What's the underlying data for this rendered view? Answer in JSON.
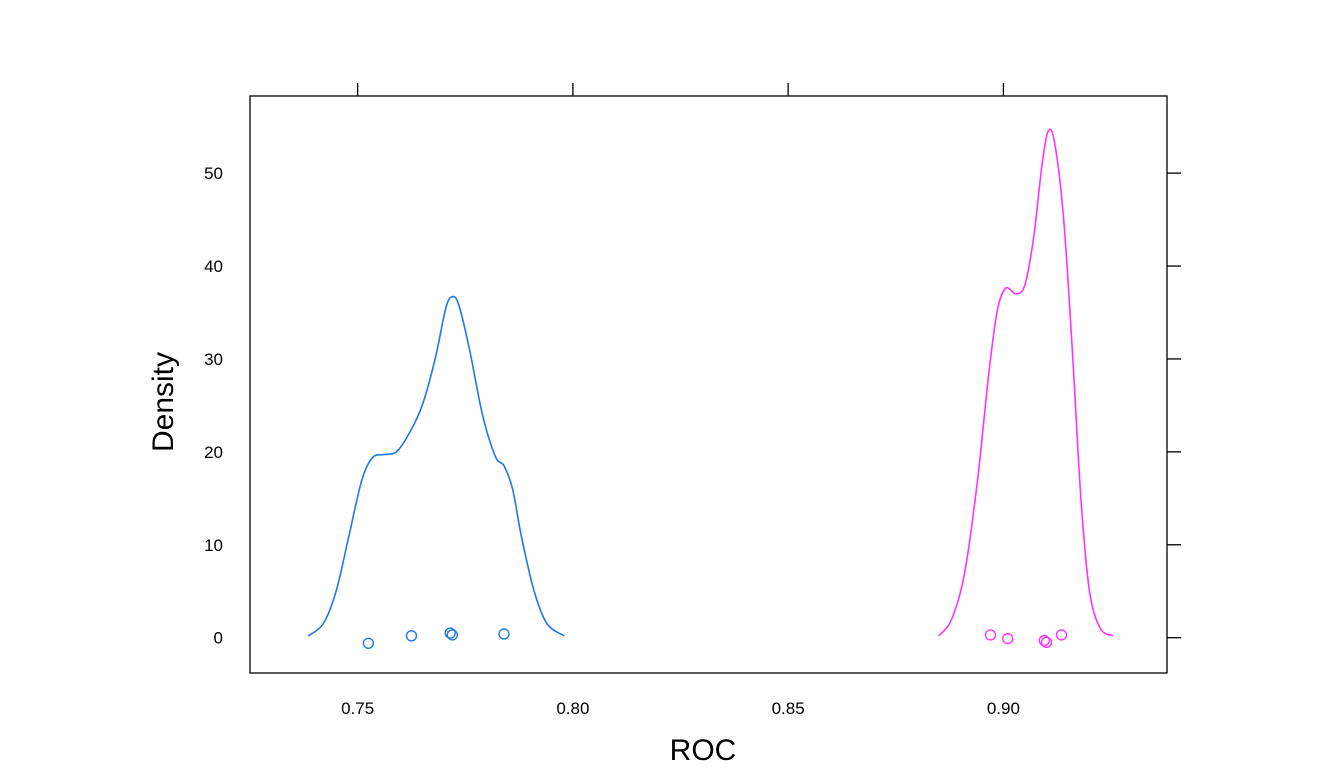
{
  "chart_data": {
    "type": "density",
    "xlabel": "ROC",
    "ylabel": "Density",
    "xlim": [
      0.725,
      0.938
    ],
    "ylim": [
      -3.8,
      58.3
    ],
    "x_ticks": [
      0.75,
      0.8,
      0.85,
      0.9
    ],
    "x_tick_labels": [
      "0.75",
      "0.80",
      "0.85",
      "0.90"
    ],
    "y_ticks": [
      0,
      10,
      20,
      30,
      40,
      50
    ],
    "y_tick_labels": [
      "0",
      "10",
      "20",
      "30",
      "40",
      "50"
    ],
    "grid": false,
    "series": [
      {
        "color": "#1f78e6",
        "curve": [
          [
            0.7385,
            0.2
          ],
          [
            0.742,
            1.5
          ],
          [
            0.745,
            5.0
          ],
          [
            0.748,
            11.0
          ],
          [
            0.751,
            17.0
          ],
          [
            0.7535,
            19.4
          ],
          [
            0.756,
            19.7
          ],
          [
            0.759,
            20.0
          ],
          [
            0.762,
            22.0
          ],
          [
            0.765,
            25.0
          ],
          [
            0.768,
            30.0
          ],
          [
            0.7705,
            35.5
          ],
          [
            0.772,
            36.7
          ],
          [
            0.7735,
            35.8
          ],
          [
            0.776,
            31.0
          ],
          [
            0.779,
            24.0
          ],
          [
            0.782,
            19.5
          ],
          [
            0.784,
            18.5
          ],
          [
            0.786,
            16.0
          ],
          [
            0.788,
            11.0
          ],
          [
            0.791,
            5.0
          ],
          [
            0.794,
            1.5
          ],
          [
            0.798,
            0.2
          ]
        ],
        "points": [
          [
            0.7525,
            -0.6
          ],
          [
            0.7625,
            0.2
          ],
          [
            0.7715,
            0.5
          ],
          [
            0.772,
            0.3
          ],
          [
            0.784,
            0.4
          ]
        ]
      },
      {
        "color": "#ff33ff",
        "curve": [
          [
            0.885,
            0.2
          ],
          [
            0.888,
            2.0
          ],
          [
            0.891,
            7.0
          ],
          [
            0.894,
            17.0
          ],
          [
            0.8965,
            28.0
          ],
          [
            0.8985,
            35.0
          ],
          [
            0.9005,
            37.6
          ],
          [
            0.903,
            37.0
          ],
          [
            0.905,
            38.0
          ],
          [
            0.907,
            43.0
          ],
          [
            0.909,
            51.0
          ],
          [
            0.9105,
            54.6
          ],
          [
            0.912,
            53.0
          ],
          [
            0.914,
            45.0
          ],
          [
            0.916,
            31.0
          ],
          [
            0.918,
            15.0
          ],
          [
            0.92,
            5.0
          ],
          [
            0.9225,
            1.0
          ],
          [
            0.9255,
            0.2
          ]
        ],
        "points": [
          [
            0.897,
            0.3
          ],
          [
            0.901,
            -0.1
          ],
          [
            0.9095,
            -0.3
          ],
          [
            0.91,
            -0.5
          ],
          [
            0.9135,
            0.3
          ]
        ]
      }
    ]
  }
}
